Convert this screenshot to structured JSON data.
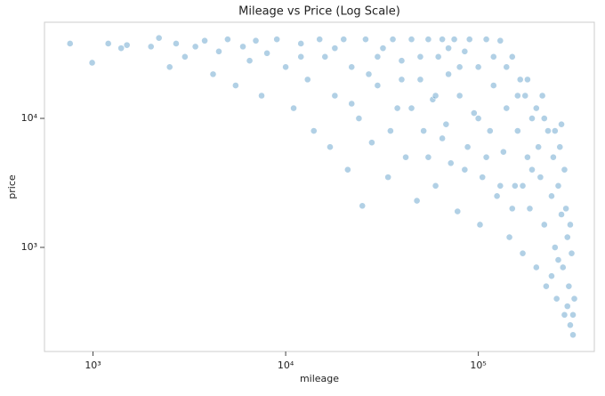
{
  "chart_data": {
    "type": "scatter",
    "title": "Mileage vs Price (Log Scale)",
    "x_label": "mileage",
    "y_label": "price",
    "x_log": true,
    "y_log": true,
    "color": "#1f77b4",
    "xlim": [
      560,
      400000
    ],
    "ylim": [
      156,
      55600
    ],
    "xticks": [
      {
        "value": 1000,
        "label": "10³"
      },
      {
        "value": 10000,
        "label": "10⁴"
      },
      {
        "value": 100000,
        "label": "10⁵"
      }
    ],
    "yticks": [
      {
        "value": 1000,
        "label": "10³"
      },
      {
        "value": 10000,
        "label": "10⁴"
      }
    ],
    "x": [
      760,
      990,
      1200,
      1400,
      1500,
      2000,
      2200,
      2500,
      2700,
      3000,
      3400,
      3800,
      4200,
      4500,
      5000,
      5500,
      6000,
      6500,
      7000,
      7500,
      8000,
      9000,
      10000,
      11000,
      12000,
      13000,
      14000,
      15000,
      16000,
      17000,
      18000,
      20000,
      21000,
      22000,
      24000,
      25000,
      26000,
      28000,
      30000,
      32000,
      34000,
      36000,
      38000,
      40000,
      42000,
      45000,
      48000,
      50000,
      52000,
      55000,
      58000,
      60000,
      62000,
      65000,
      68000,
      70000,
      72000,
      75000,
      78000,
      80000,
      85000,
      88000,
      90000,
      95000,
      100000,
      102000,
      105000,
      110000,
      115000,
      120000,
      125000,
      130000,
      135000,
      140000,
      145000,
      150000,
      155000,
      160000,
      165000,
      170000,
      175000,
      180000,
      185000,
      190000,
      200000,
      205000,
      210000,
      215000,
      220000,
      225000,
      230000,
      240000,
      245000,
      250000,
      255000,
      260000,
      265000,
      270000,
      275000,
      280000,
      285000,
      290000,
      295000,
      300000,
      305000,
      310000,
      315000,
      300000,
      280000,
      30000,
      40000,
      50000,
      60000,
      70000,
      80000,
      100000,
      120000,
      140000,
      160000,
      180000,
      200000,
      220000,
      250000,
      270000,
      12000,
      18000,
      22000,
      27000,
      35000,
      45000,
      55000,
      65000,
      85000,
      110000,
      130000,
      150000,
      170000,
      190000,
      240000,
      260000,
      290000,
      310000
    ],
    "values": [
      38000,
      27000,
      38000,
      35000,
      37000,
      36000,
      42000,
      25000,
      38000,
      30000,
      36000,
      40000,
      22000,
      33000,
      41000,
      18000,
      36000,
      28000,
      40000,
      15000,
      32000,
      41000,
      25000,
      12000,
      38000,
      20000,
      8000,
      41000,
      30000,
      6000,
      15000,
      41000,
      4000,
      25000,
      10000,
      2100,
      41000,
      6500,
      18000,
      35000,
      3500,
      41000,
      12000,
      28000,
      5000,
      41000,
      2300,
      20000,
      8000,
      41000,
      14000,
      3000,
      30000,
      41000,
      9000,
      22000,
      4500,
      41000,
      1900,
      15000,
      33000,
      6000,
      41000,
      11000,
      25000,
      1500,
      3500,
      41000,
      8000,
      18000,
      2500,
      40000,
      5500,
      12000,
      1200,
      30000,
      3000,
      8000,
      20000,
      900,
      15000,
      5000,
      2000,
      10000,
      700,
      6000,
      3500,
      15000,
      1500,
      500,
      8000,
      2500,
      5000,
      1000,
      400,
      3000,
      6000,
      1800,
      700,
      300,
      2000,
      1200,
      500,
      250,
      900,
      210,
      400,
      1500,
      4000,
      30000,
      20000,
      30000,
      15000,
      35000,
      25000,
      10000,
      30000,
      25000,
      15000,
      20000,
      12000,
      10000,
      8000,
      9000,
      30000,
      35000,
      13000,
      22000,
      8000,
      12000,
      5000,
      7000,
      4000,
      5000,
      3000,
      2000,
      3000,
      4000,
      600,
      800,
      350,
      300
    ]
  }
}
